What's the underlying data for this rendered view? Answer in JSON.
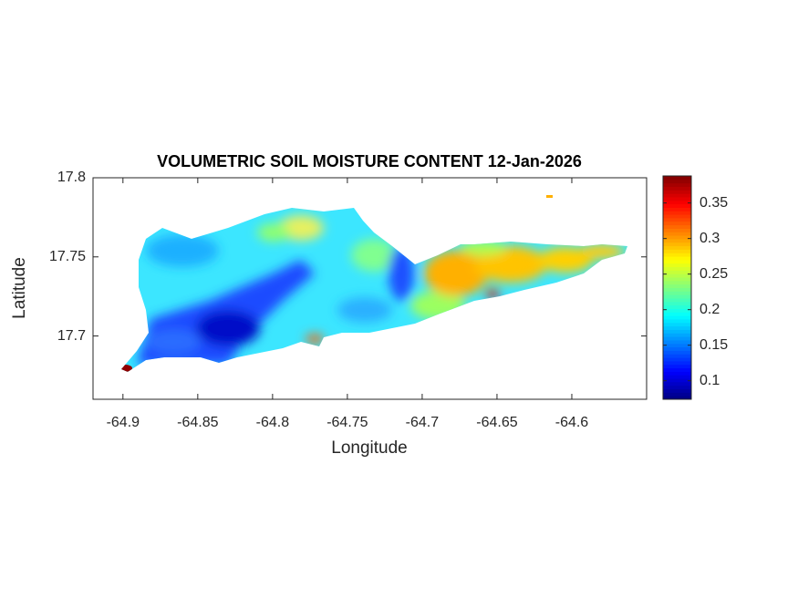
{
  "chart_data": {
    "type": "map",
    "title": "VOLUMETRIC SOIL MOISTURE CONTENT 12-Jan-2026",
    "x_label": "Longitude",
    "y_label": "Latitude",
    "xlim": [
      -64.92,
      -64.55
    ],
    "xticks": [
      -64.9,
      -64.85,
      -64.8,
      -64.75,
      -64.7,
      -64.65,
      -64.6
    ],
    "ylim": [
      17.66,
      17.8
    ],
    "yticks": [
      17.7,
      17.75,
      17.8
    ],
    "colormap": "jet",
    "clim": [
      0.074,
      0.388
    ],
    "cticks": [
      0.1,
      0.15,
      0.2,
      0.25,
      0.3,
      0.35
    ]
  }
}
